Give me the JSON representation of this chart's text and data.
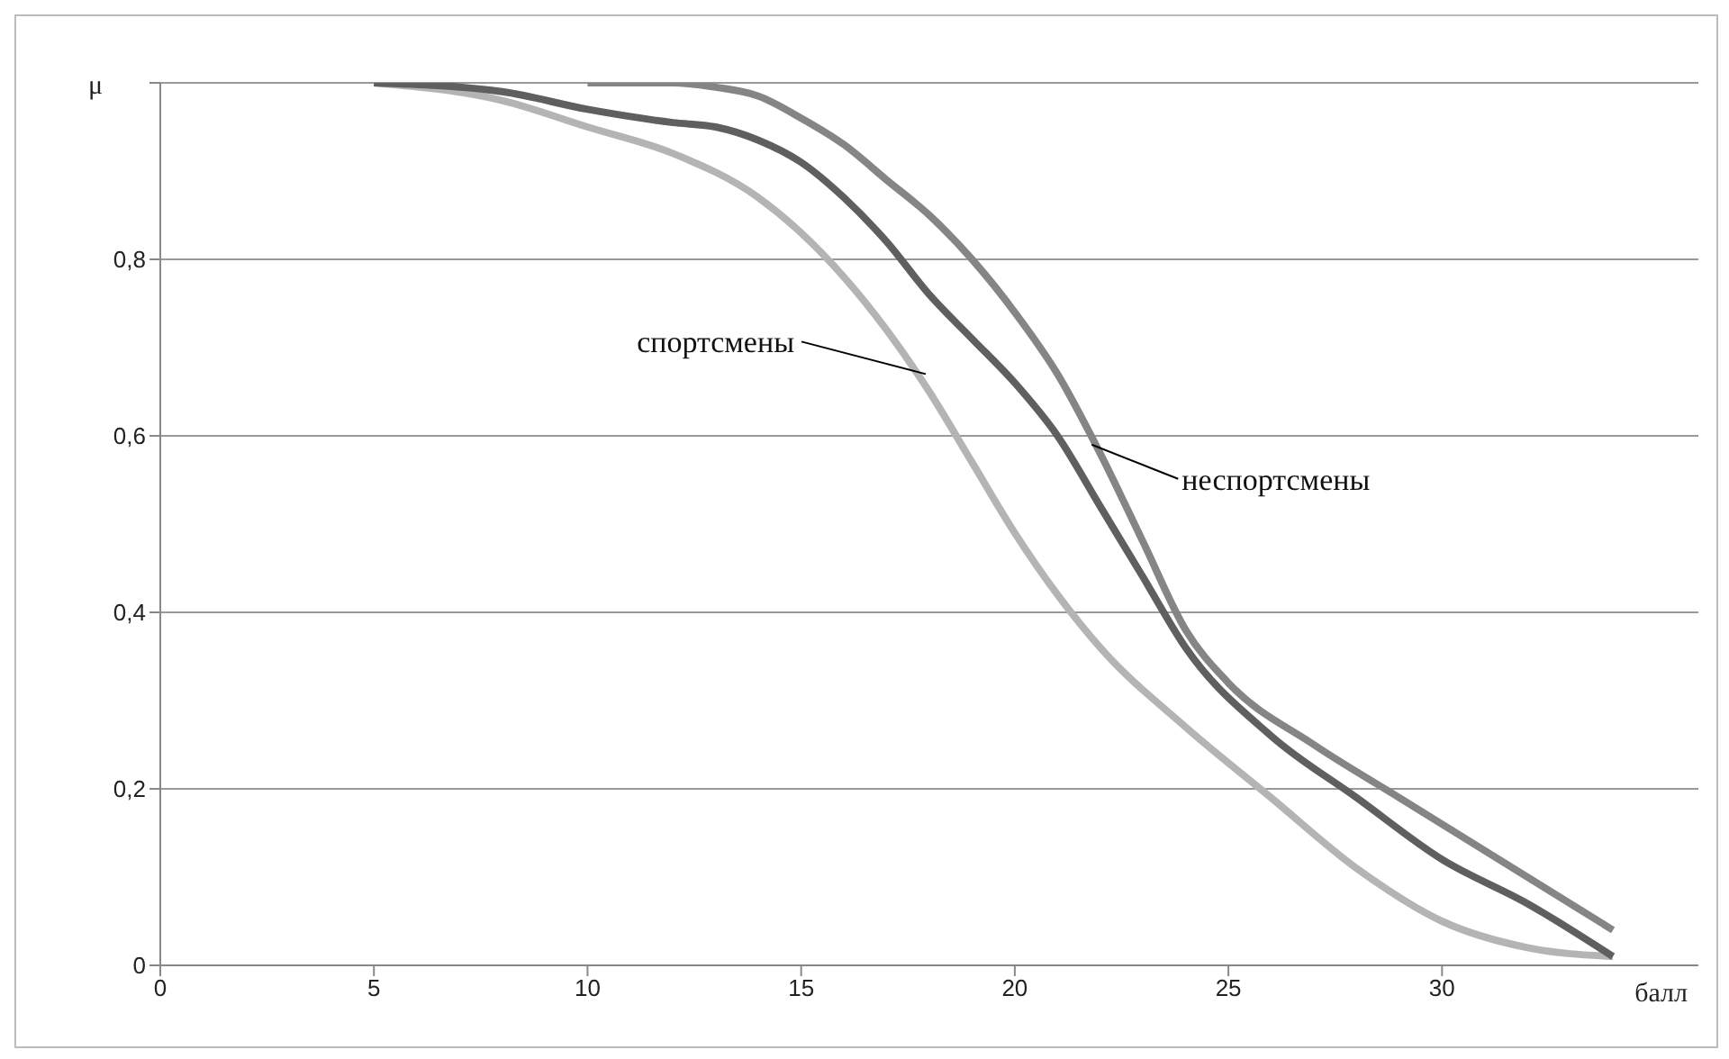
{
  "chart_data": {
    "type": "line",
    "xlabel": "балл",
    "ylabel": "μ",
    "xlim": [
      0,
      36
    ],
    "xticks": [
      0,
      5,
      10,
      15,
      20,
      25,
      30
    ],
    "ylim": [
      0,
      1
    ],
    "yticks": [
      0,
      {
        "value": 0.2,
        "label": "0,2"
      },
      {
        "value": 0.4,
        "label": "0,4"
      },
      {
        "value": 0.6,
        "label": "0,6"
      },
      {
        "value": 0.8,
        "label": "0,8"
      },
      {
        "value": 1,
        "label": null
      }
    ],
    "grid": "y",
    "marker": "none",
    "line_style": "solid",
    "series": [
      {
        "color": "#b4b4b4",
        "x": [
          5,
          8,
          10,
          12,
          14,
          15,
          16,
          17,
          18,
          19,
          20,
          21,
          22,
          24,
          26,
          28,
          30,
          32,
          34
        ],
        "values": [
          1,
          0.98,
          0.95,
          0.92,
          0.87,
          0.83,
          0.78,
          0.72,
          0.65,
          0.57,
          0.49,
          0.42,
          0.36,
          0.27,
          0.19,
          0.11,
          0.05,
          0.02,
          0.01
        ]
      },
      {
        "color": "#5f5f5f",
        "x": [
          5,
          8,
          10,
          12,
          13,
          14,
          15,
          16,
          17,
          18,
          19,
          20,
          21,
          22,
          23,
          24,
          26,
          28,
          30,
          32,
          34
        ],
        "values": [
          1,
          0.99,
          0.97,
          0.955,
          0.95,
          0.935,
          0.91,
          0.87,
          0.82,
          0.76,
          0.71,
          0.66,
          0.6,
          0.52,
          0.44,
          0.36,
          0.26,
          0.19,
          0.12,
          0.07,
          0.01
        ]
      },
      {
        "color": "#858585",
        "x": [
          10,
          12,
          13,
          14,
          15,
          16,
          17,
          18,
          19,
          20,
          21,
          22,
          23,
          24,
          25,
          27,
          29,
          31,
          34
        ],
        "values": [
          1,
          1,
          0.995,
          0.985,
          0.96,
          0.93,
          0.89,
          0.85,
          0.8,
          0.74,
          0.67,
          0.58,
          0.48,
          0.38,
          0.32,
          0.25,
          0.19,
          0.13,
          0.04
        ]
      }
    ],
    "annotations": [
      {
        "text": "спортсмены",
        "x": 18,
        "y": 0.67
      },
      {
        "text": "неспортсмены",
        "x": 21.8,
        "y": 0.59
      }
    ]
  }
}
